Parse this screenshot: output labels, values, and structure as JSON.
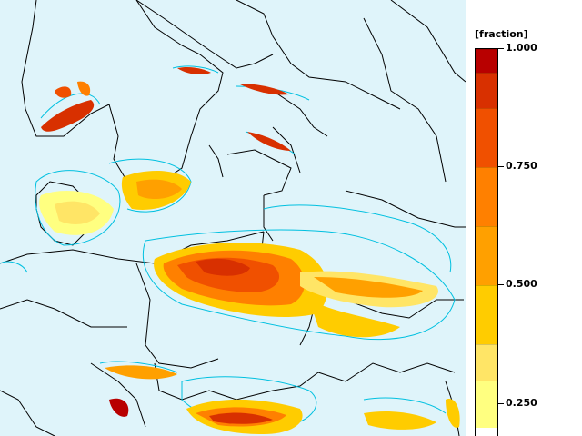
{
  "legend": {
    "unit": "[fraction]",
    "max_label": "1.000",
    "ticks": [
      {
        "value": 1.0,
        "label": "1.000"
      },
      {
        "value": 0.75,
        "label": "0.750"
      },
      {
        "value": 0.5,
        "label": "0.500"
      },
      {
        "value": 0.25,
        "label": "0.250"
      }
    ],
    "bins": [
      {
        "from": 0.2,
        "to": 0.3,
        "color": "#ffff80"
      },
      {
        "from": 0.3,
        "to": 0.375,
        "color": "#ffe566"
      },
      {
        "from": 0.375,
        "to": 0.5,
        "color": "#ffcc00"
      },
      {
        "from": 0.5,
        "to": 0.625,
        "color": "#ffa000"
      },
      {
        "from": 0.625,
        "to": 0.75,
        "color": "#ff8000"
      },
      {
        "from": 0.75,
        "to": 0.875,
        "color": "#f05000"
      },
      {
        "from": 0.875,
        "to": 0.95,
        "color": "#d83000"
      },
      {
        "from": 0.95,
        "to": 1.0,
        "color": "#b80000"
      }
    ]
  },
  "map": {
    "sea_color": "#dff4fa",
    "land_color": "#dff4fa",
    "coast_color": "#000000",
    "contour_color": "#00c0e0"
  }
}
